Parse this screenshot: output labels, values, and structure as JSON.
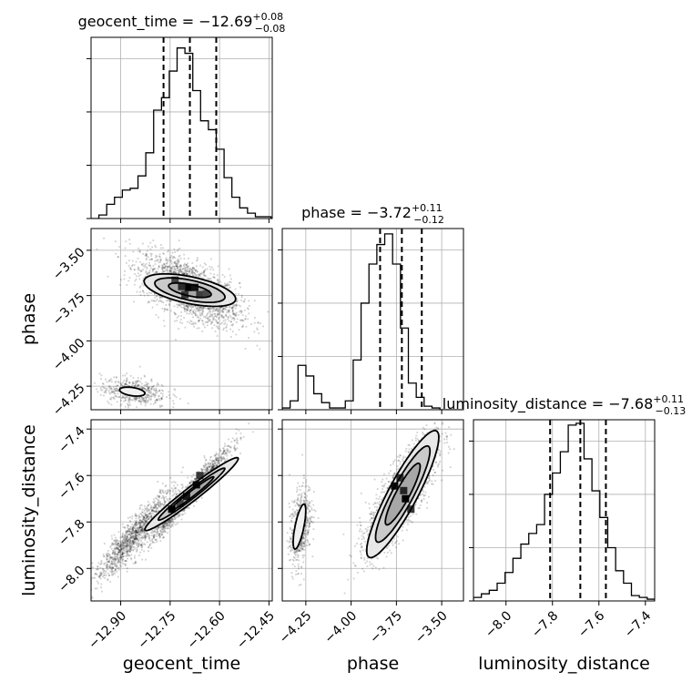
{
  "chart_data": {
    "type": "corner",
    "parameters": [
      {
        "name": "geocent_time",
        "title_prefix": "geocent_time = ",
        "median": "−12.69",
        "plus": "+0.08",
        "minus": "−0.08",
        "range": [
          -12.99,
          -12.44
        ],
        "ticks": [
          -12.9,
          -12.75,
          -12.6,
          -12.45
        ],
        "tick_labels": [
          "−12.90",
          "−12.75",
          "−12.60",
          "−12.45"
        ],
        "quantiles": [
          -12.77,
          -12.69,
          -12.61
        ],
        "histogram": {
          "edges": [
            -12.99,
            -12.9662,
            -12.9425,
            -12.9188,
            -12.895,
            -12.8712,
            -12.8475,
            -12.8238,
            -12.8,
            -12.7762,
            -12.7525,
            -12.7288,
            -12.705,
            -12.6812,
            -12.6575,
            -12.6338,
            -12.61,
            -12.5862,
            -12.5625,
            -12.5388,
            -12.515,
            -12.4912,
            -12.4675,
            -12.4438
          ],
          "counts": [
            0,
            0.02,
            0.08,
            0.12,
            0.16,
            0.17,
            0.24,
            0.37,
            0.61,
            0.68,
            0.83,
            0.96,
            0.93,
            0.72,
            0.55,
            0.5,
            0.39,
            0.23,
            0.12,
            0.06,
            0.03,
            0.01,
            0.01
          ]
        }
      },
      {
        "name": "phase",
        "title_prefix": "phase = ",
        "median": "−3.72",
        "plus": "+0.11",
        "minus": "−0.12",
        "range": [
          -4.38,
          -3.38
        ],
        "ticks": [
          -4.25,
          -4.0,
          -3.75,
          -3.5
        ],
        "tick_labels": [
          "−4.25",
          "−4.00",
          "−3.75",
          "−3.50"
        ],
        "quantiles": [
          -3.84,
          -3.72,
          -3.61
        ],
        "histogram": {
          "edges": [
            -4.38,
            -4.3365,
            -4.293,
            -4.2495,
            -4.206,
            -4.1625,
            -4.119,
            -4.0755,
            -4.032,
            -3.9885,
            -3.945,
            -3.9015,
            -3.858,
            -3.8145,
            -3.771,
            -3.7275,
            -3.684,
            -3.6405,
            -3.597,
            -3.5535,
            -3.51,
            -3.4665,
            -3.423,
            -3.38
          ],
          "counts": [
            0.01,
            0.05,
            0.25,
            0.19,
            0.09,
            0.04,
            0.01,
            0.01,
            0.05,
            0.28,
            0.6,
            0.82,
            0.93,
            0.99,
            0.82,
            0.46,
            0.15,
            0.07,
            0.02,
            0.01,
            0.0,
            0.0,
            0.0
          ]
        }
      },
      {
        "name": "luminosity_distance",
        "title_prefix": "luminosity_distance = ",
        "median": "−7.68",
        "plus": "+0.11",
        "minus": "−0.13",
        "range": [
          -8.14,
          -7.36
        ],
        "ticks": [
          -8.0,
          -7.8,
          -7.6,
          -7.4
        ],
        "tick_labels": [
          "−8.0",
          "−7.8",
          "−7.6",
          "−7.4"
        ],
        "quantiles": [
          -7.81,
          -7.68,
          -7.57
        ],
        "histogram": {
          "edges": [
            -8.14,
            -8.106,
            -8.072,
            -8.038,
            -8.004,
            -7.97,
            -7.936,
            -7.902,
            -7.868,
            -7.834,
            -7.8,
            -7.766,
            -7.732,
            -7.698,
            -7.664,
            -7.63,
            -7.596,
            -7.562,
            -7.528,
            -7.494,
            -7.46,
            -7.426,
            -7.392,
            -7.36
          ],
          "counts": [
            0.02,
            0.04,
            0.06,
            0.1,
            0.16,
            0.24,
            0.32,
            0.38,
            0.43,
            0.6,
            0.72,
            0.84,
            0.99,
            1.0,
            0.8,
            0.62,
            0.47,
            0.3,
            0.17,
            0.1,
            0.03,
            0.02,
            0.01
          ]
        }
      }
    ],
    "pairs": [
      {
        "x": 0,
        "y": 1,
        "blobs": [
          {
            "cx": -12.69,
            "cy": -3.72,
            "sx": 0.075,
            "sy": 0.095,
            "rho": -0.6,
            "w": 0.82
          },
          {
            "cx": -12.86,
            "cy": -4.28,
            "sx": 0.05,
            "sy": 0.04,
            "rho": -0.2,
            "w": 0.18
          }
        ],
        "contours": [
          {
            "cx": -12.69,
            "cy": -3.72,
            "a": 0.15,
            "b": 0.07,
            "angle": -25
          },
          {
            "cx": -12.69,
            "cy": -3.72,
            "a": 0.115,
            "b": 0.052,
            "angle": -25
          },
          {
            "cx": -12.69,
            "cy": -3.72,
            "a": 0.07,
            "b": 0.03,
            "angle": -25
          },
          {
            "cx": -12.865,
            "cy": -4.28,
            "a": 0.04,
            "b": 0.022,
            "angle": -20
          }
        ],
        "peak_cells": [
          {
            "x": -12.695,
            "y": -3.705,
            "v": 1.0
          },
          {
            "x": -12.675,
            "y": -3.705,
            "v": 0.85
          },
          {
            "x": -12.715,
            "y": -3.7,
            "v": 0.65
          },
          {
            "x": -12.705,
            "y": -3.745,
            "v": 0.55
          },
          {
            "x": -12.66,
            "y": -3.745,
            "v": 0.5
          },
          {
            "x": -12.735,
            "y": -3.665,
            "v": 0.45
          },
          {
            "x": -12.64,
            "y": -3.74,
            "v": 0.4
          }
        ]
      },
      {
        "x": 0,
        "y": 2,
        "blobs": [
          {
            "cx": -12.69,
            "cy": -7.68,
            "sx": 0.06,
            "sy": 0.1,
            "rho": 0.97,
            "w": 0.55
          },
          {
            "cx": -12.86,
            "cy": -7.86,
            "sx": 0.06,
            "sy": 0.1,
            "rho": 0.93,
            "w": 0.45
          }
        ],
        "contours": [
          {
            "cx": -12.685,
            "cy": -7.68,
            "a": 0.21,
            "b": 0.025,
            "angle": 48
          },
          {
            "cx": -12.685,
            "cy": -7.68,
            "a": 0.15,
            "b": 0.016,
            "angle": 48
          },
          {
            "cx": -12.685,
            "cy": -7.68,
            "a": 0.1,
            "b": 0.01,
            "angle": 48
          }
        ],
        "peak_cells": [
          {
            "x": -12.745,
            "y": -7.745,
            "v": 1.0
          },
          {
            "x": -12.7,
            "y": -7.69,
            "v": 0.8
          },
          {
            "x": -12.67,
            "y": -7.64,
            "v": 0.9
          },
          {
            "x": -12.66,
            "y": -7.6,
            "v": 0.55
          },
          {
            "x": -12.72,
            "y": -7.72,
            "v": 0.45
          }
        ]
      },
      {
        "x": 1,
        "y": 2,
        "blobs": [
          {
            "cx": -3.72,
            "cy": -7.68,
            "sx": 0.095,
            "sy": 0.12,
            "rho": 0.8,
            "w": 0.8
          },
          {
            "cx": -4.28,
            "cy": -7.82,
            "sx": 0.03,
            "sy": 0.09,
            "rho": 0.4,
            "w": 0.2
          }
        ],
        "contours": [
          {
            "cx": -3.715,
            "cy": -7.68,
            "a": 0.33,
            "b": 0.075,
            "angle": 55
          },
          {
            "cx": -3.715,
            "cy": -7.68,
            "a": 0.25,
            "b": 0.055,
            "angle": 55
          },
          {
            "cx": -3.715,
            "cy": -7.68,
            "a": 0.16,
            "b": 0.035,
            "angle": 55
          },
          {
            "cx": -4.285,
            "cy": -7.82,
            "a": 0.1,
            "b": 0.024,
            "angle": 75
          }
        ],
        "peak_cells": [
          {
            "x": -3.7,
            "y": -7.7,
            "v": 1.0
          },
          {
            "x": -3.76,
            "y": -7.645,
            "v": 0.9
          },
          {
            "x": -3.73,
            "y": -7.61,
            "v": 0.6
          },
          {
            "x": -3.67,
            "y": -7.745,
            "v": 0.55
          },
          {
            "x": -3.71,
            "y": -7.665,
            "v": 0.7
          }
        ]
      }
    ]
  }
}
